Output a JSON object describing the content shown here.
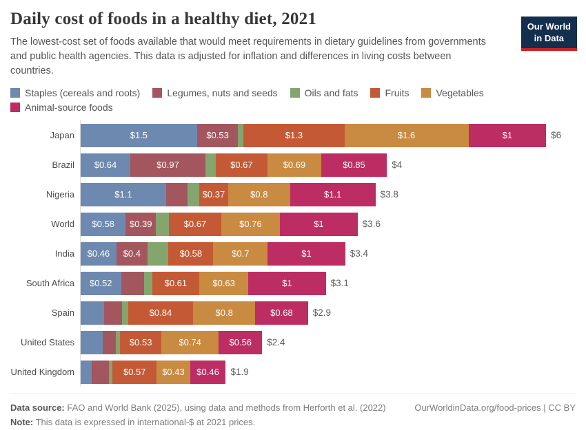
{
  "header": {
    "title": "Daily cost of foods in a healthy diet, 2021",
    "subtitle": "The lowest-cost set of foods available that would meet requirements in dietary guidelines from governments and public health agencies. This data is adjusted for inflation and differences in living costs between countries.",
    "logo": {
      "line1": "Our World",
      "line2": "in Data",
      "bg_color": "#142e4e",
      "accent_color": "#cb2626"
    }
  },
  "legend": {
    "items": [
      {
        "label": "Staples (cereals and roots)",
        "color": "#6e89b0"
      },
      {
        "label": "Legumes, nuts and seeds",
        "color": "#a4565e"
      },
      {
        "label": "Oils and fats",
        "color": "#85a56e"
      },
      {
        "label": "Fruits",
        "color": "#c45a35"
      },
      {
        "label": "Vegetables",
        "color": "#c98a41"
      },
      {
        "label": "Animal-source foods",
        "color": "#bc2d64"
      }
    ]
  },
  "chart_data": {
    "type": "bar",
    "stacked": true,
    "orientation": "horizontal",
    "title": "Daily cost of foods in a healthy diet, 2021",
    "unit": "international-$ per person per day",
    "xlim": [
      0,
      6
    ],
    "grid": false,
    "series_names": [
      "Staples (cereals and roots)",
      "Legumes, nuts and seeds",
      "Oils and fats",
      "Fruits",
      "Vegetables",
      "Animal-source foods"
    ],
    "categories": [
      "Japan",
      "Brazil",
      "Nigeria",
      "World",
      "India",
      "South Africa",
      "Spain",
      "United States",
      "United Kingdom"
    ],
    "rows": [
      {
        "country": "Japan",
        "values": [
          1.5,
          0.53,
          0.07,
          1.3,
          1.6,
          1.0
        ],
        "segment_labels": [
          "$1.5",
          "$0.53",
          "",
          "$1.3",
          "$1.6",
          "$1"
        ],
        "total_label": "$6",
        "total_value": 6.0
      },
      {
        "country": "Brazil",
        "values": [
          0.64,
          0.97,
          0.13,
          0.67,
          0.69,
          0.85
        ],
        "segment_labels": [
          "$0.64",
          "$0.97",
          "",
          "$0.67",
          "$0.69",
          "$0.85"
        ],
        "total_label": "$4",
        "total_value": 4.0
      },
      {
        "country": "Nigeria",
        "values": [
          1.1,
          0.28,
          0.15,
          0.37,
          0.8,
          1.1
        ],
        "segment_labels": [
          "$1.1",
          "",
          "",
          "$0.37",
          "$0.8",
          "$1.1"
        ],
        "total_label": "$3.8",
        "total_value": 3.8
      },
      {
        "country": "World",
        "values": [
          0.58,
          0.39,
          0.17,
          0.67,
          0.76,
          1.0
        ],
        "segment_labels": [
          "$0.58",
          "$0.39",
          "",
          "$0.67",
          "$0.76",
          "$1"
        ],
        "total_label": "$3.6",
        "total_value": 3.6
      },
      {
        "country": "India",
        "values": [
          0.46,
          0.4,
          0.27,
          0.58,
          0.7,
          1.0
        ],
        "segment_labels": [
          "$0.46",
          "$0.4",
          "",
          "$0.58",
          "$0.7",
          "$1"
        ],
        "total_label": "$3.4",
        "total_value": 3.4
      },
      {
        "country": "South Africa",
        "values": [
          0.52,
          0.3,
          0.1,
          0.61,
          0.63,
          1.0
        ],
        "segment_labels": [
          "$0.52",
          "",
          "",
          "$0.61",
          "$0.63",
          "$1"
        ],
        "total_label": "$3.1",
        "total_value": 3.1
      },
      {
        "country": "Spain",
        "values": [
          0.3,
          0.23,
          0.08,
          0.84,
          0.8,
          0.68
        ],
        "segment_labels": [
          "",
          "",
          "",
          "$0.84",
          "$0.8",
          "$0.68"
        ],
        "total_label": "$2.9",
        "total_value": 2.9
      },
      {
        "country": "United States",
        "values": [
          0.28,
          0.17,
          0.06,
          0.53,
          0.74,
          0.56
        ],
        "segment_labels": [
          "",
          "",
          "",
          "$0.53",
          "$0.74",
          "$0.56"
        ],
        "total_label": "$2.4",
        "total_value": 2.4
      },
      {
        "country": "United Kingdom",
        "values": [
          0.14,
          0.22,
          0.05,
          0.57,
          0.43,
          0.46
        ],
        "segment_labels": [
          "",
          "",
          "",
          "$0.57",
          "$0.43",
          "$0.46"
        ],
        "total_label": "$1.9",
        "total_value": 1.9
      }
    ]
  },
  "footer": {
    "source_label": "Data source:",
    "source_text": " FAO and World Bank (2025), using data and methods from Herforth et al. (2022)",
    "note_label": "Note:",
    "note_text": " This data is expressed in international-$ at 2021 prices.",
    "right_text": "OurWorldinData.org/food-prices | CC BY"
  }
}
